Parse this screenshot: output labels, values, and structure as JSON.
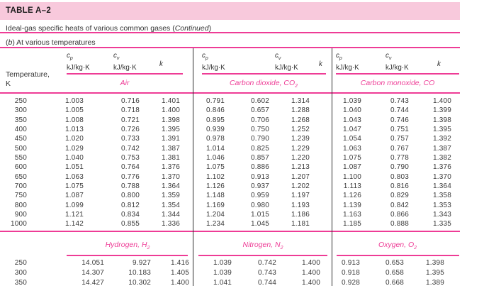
{
  "colors": {
    "accent_pink": "#ee3c96",
    "band_pink": "#f8c9dc",
    "divider": "#2e2e2e",
    "text": "#3a3a3a"
  },
  "table": {
    "id": "TABLE A–2",
    "subtitle": {
      "prefix": "Ideal-gas specific heats of various common gases (",
      "italic": "Continued",
      "suffix": ")"
    },
    "part": {
      "prefix": "(",
      "italic": "b",
      "suffix": ") At various temperatures"
    }
  },
  "columns": {
    "temperature_label": "Temperature,",
    "temperature_unit": "K",
    "cp_symbol": "c",
    "cp_sub": "p",
    "cv_symbol": "c",
    "cv_sub": "v",
    "unit": "kJ/kg·K",
    "k_symbol": "k"
  },
  "sections": [
    {
      "groups": [
        {
          "name": "Air",
          "sub": ""
        },
        {
          "name": "Carbon dioxide, CO",
          "sub": "2"
        },
        {
          "name": "Carbon monoxide, CO",
          "sub": ""
        }
      ],
      "rows": [
        {
          "T": "250",
          "values": [
            "1.003",
            "0.716",
            "1.401",
            "0.791",
            "0.602",
            "1.314",
            "1.039",
            "0.743",
            "1.400"
          ]
        },
        {
          "T": "300",
          "values": [
            "1.005",
            "0.718",
            "1.400",
            "0.846",
            "0.657",
            "1.288",
            "1.040",
            "0.744",
            "1.399"
          ]
        },
        {
          "T": "350",
          "values": [
            "1.008",
            "0.721",
            "1.398",
            "0.895",
            "0.706",
            "1.268",
            "1.043",
            "0.746",
            "1.398"
          ]
        },
        {
          "T": "400",
          "values": [
            "1.013",
            "0.726",
            "1.395",
            "0.939",
            "0.750",
            "1.252",
            "1.047",
            "0.751",
            "1.395"
          ]
        },
        {
          "T": "450",
          "values": [
            "1.020",
            "0.733",
            "1.391",
            "0.978",
            "0.790",
            "1.239",
            "1.054",
            "0.757",
            "1.392"
          ]
        },
        {
          "T": "500",
          "values": [
            "1.029",
            "0.742",
            "1.387",
            "1.014",
            "0.825",
            "1.229",
            "1.063",
            "0.767",
            "1.387"
          ]
        },
        {
          "T": "550",
          "values": [
            "1.040",
            "0.753",
            "1.381",
            "1.046",
            "0.857",
            "1.220",
            "1.075",
            "0.778",
            "1.382"
          ]
        },
        {
          "T": "600",
          "values": [
            "1.051",
            "0.764",
            "1.376",
            "1.075",
            "0.886",
            "1.213",
            "1.087",
            "0.790",
            "1.376"
          ]
        },
        {
          "T": "650",
          "values": [
            "1.063",
            "0.776",
            "1.370",
            "1.102",
            "0.913",
            "1.207",
            "1.100",
            "0.803",
            "1.370"
          ]
        },
        {
          "T": "700",
          "values": [
            "1.075",
            "0.788",
            "1.364",
            "1.126",
            "0.937",
            "1.202",
            "1.113",
            "0.816",
            "1.364"
          ]
        },
        {
          "T": "750",
          "values": [
            "1.087",
            "0.800",
            "1.359",
            "1.148",
            "0.959",
            "1.197",
            "1.126",
            "0.829",
            "1.358"
          ]
        },
        {
          "T": "800",
          "values": [
            "1.099",
            "0.812",
            "1.354",
            "1.169",
            "0.980",
            "1.193",
            "1.139",
            "0.842",
            "1.353"
          ]
        },
        {
          "T": "900",
          "values": [
            "1.121",
            "0.834",
            "1.344",
            "1.204",
            "1.015",
            "1.186",
            "1.163",
            "0.866",
            "1.343"
          ]
        },
        {
          "T": "1000",
          "values": [
            "1.142",
            "0.855",
            "1.336",
            "1.234",
            "1.045",
            "1.181",
            "1.185",
            "0.888",
            "1.335"
          ]
        }
      ]
    },
    {
      "groups": [
        {
          "name": "Hydrogen, H",
          "sub": "2"
        },
        {
          "name": "Nitrogen, N",
          "sub": "2"
        },
        {
          "name": "Oxygen, O",
          "sub": "2"
        }
      ],
      "rows": [
        {
          "T": "250",
          "values": [
            "14.051",
            "9.927",
            "1.416",
            "1.039",
            "0.742",
            "1.400",
            "0.913",
            "0.653",
            "1.398"
          ]
        },
        {
          "T": "300",
          "values": [
            "14.307",
            "10.183",
            "1.405",
            "1.039",
            "0.743",
            "1.400",
            "0.918",
            "0.658",
            "1.395"
          ]
        },
        {
          "T": "350",
          "values": [
            "14.427",
            "10.302",
            "1.400",
            "1.041",
            "0.744",
            "1.400",
            "0.928",
            "0.668",
            "1.389"
          ]
        }
      ]
    }
  ]
}
